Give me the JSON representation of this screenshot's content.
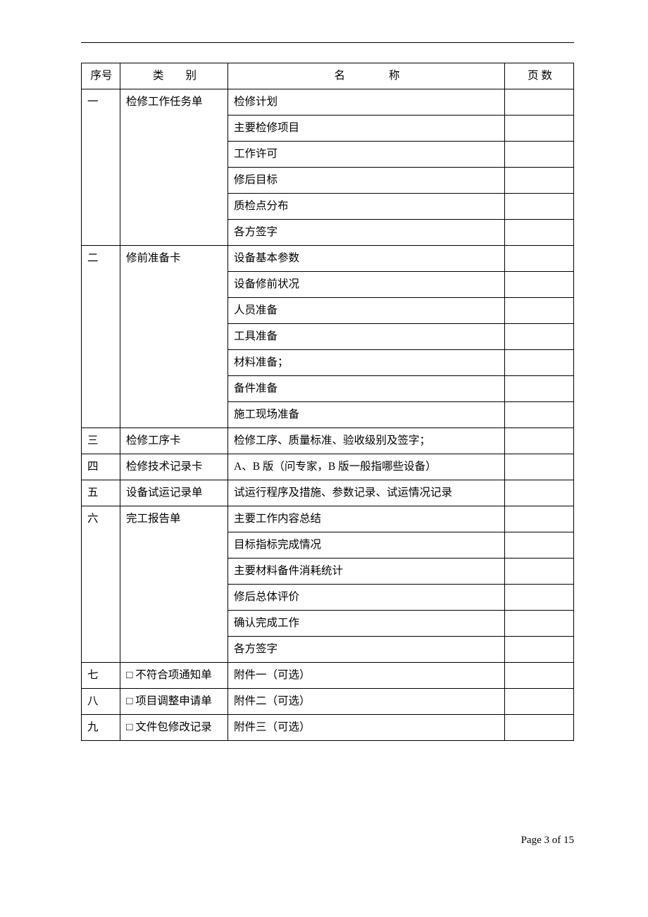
{
  "table": {
    "headers": {
      "seq": "序号",
      "category": "类　　别",
      "name": "名　　　　称",
      "page": "页 数"
    },
    "rows": [
      {
        "seq": "一",
        "category": "检修工作任务单",
        "name": "检修计划",
        "page": "",
        "seqRowspan": 6,
        "catRowspan": 6
      },
      {
        "name": "主要检修项目",
        "page": ""
      },
      {
        "name": "工作许可",
        "page": ""
      },
      {
        "name": "修后目标",
        "page": ""
      },
      {
        "name": "质检点分布",
        "page": ""
      },
      {
        "name": "各方签字",
        "page": ""
      },
      {
        "seq": "二",
        "category": "修前准备卡",
        "name": "设备基本参数",
        "page": "",
        "seqRowspan": 7,
        "catRowspan": 7
      },
      {
        "name": "设备修前状况",
        "page": ""
      },
      {
        "name": "人员准备",
        "page": ""
      },
      {
        "name": "工具准备",
        "page": ""
      },
      {
        "name": "材料准备；",
        "page": ""
      },
      {
        "name": "备件准备",
        "page": ""
      },
      {
        "name": "施工现场准备",
        "page": ""
      },
      {
        "seq": "三",
        "category": "检修工序卡",
        "name": "检修工序、质量标准、验收级别及签字；",
        "page": ""
      },
      {
        "seq": "四",
        "category": "检修技术记录卡",
        "name": "A、B 版（问专家，B 版一般指哪些设备）",
        "page": ""
      },
      {
        "seq": "五",
        "category": "设备试运记录单",
        "name": "试运行程序及措施、参数记录、试运情况记录",
        "page": ""
      },
      {
        "seq": "六",
        "category": "完工报告单",
        "name": "主要工作内容总结",
        "page": "",
        "seqRowspan": 6,
        "catRowspan": 6
      },
      {
        "name": "目标指标完成情况",
        "page": ""
      },
      {
        "name": "主要材料备件消耗统计",
        "page": ""
      },
      {
        "name": "修后总体评价",
        "page": ""
      },
      {
        "name": "确认完成工作",
        "page": ""
      },
      {
        "name": "各方签字",
        "page": ""
      },
      {
        "seq": "七",
        "category": "□ 不符合项通知单",
        "name": "附件一（可选）",
        "page": ""
      },
      {
        "seq": "八",
        "category": "□ 项目调整申请单",
        "name": "附件二（可选）",
        "page": ""
      },
      {
        "seq": "九",
        "category": "□ 文件包修改记录",
        "name": "附件三（可选）",
        "page": ""
      }
    ]
  },
  "footer": "Page 3 of 15"
}
